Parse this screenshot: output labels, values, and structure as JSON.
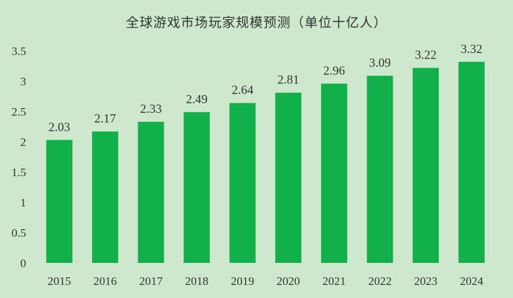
{
  "chart_data": {
    "type": "bar",
    "title": "全球游戏市场玩家规模预测（单位十亿人）",
    "categories": [
      "2015",
      "2016",
      "2017",
      "2018",
      "2019",
      "2020",
      "2021",
      "2022",
      "2023",
      "2024"
    ],
    "values": [
      2.03,
      2.17,
      2.33,
      2.49,
      2.64,
      2.81,
      2.96,
      3.09,
      3.22,
      3.32
    ],
    "data_labels": [
      "2.03",
      "2.17",
      "2.33",
      "2.49",
      "2.64",
      "2.81",
      "2.96",
      "3.09",
      "3.22",
      "3.32"
    ],
    "y_ticks": [
      "0",
      "0.5",
      "1",
      "1.5",
      "2",
      "2.5",
      "3",
      "3.5"
    ],
    "y_tick_values": [
      0,
      0.5,
      1,
      1.5,
      2,
      2.5,
      3,
      3.5
    ],
    "xlabel": "",
    "ylabel": "",
    "ylim": [
      0,
      3.5
    ],
    "grid": false,
    "legend": "none",
    "bar_color": "#12b04a",
    "background_color": "#cde8cd"
  }
}
